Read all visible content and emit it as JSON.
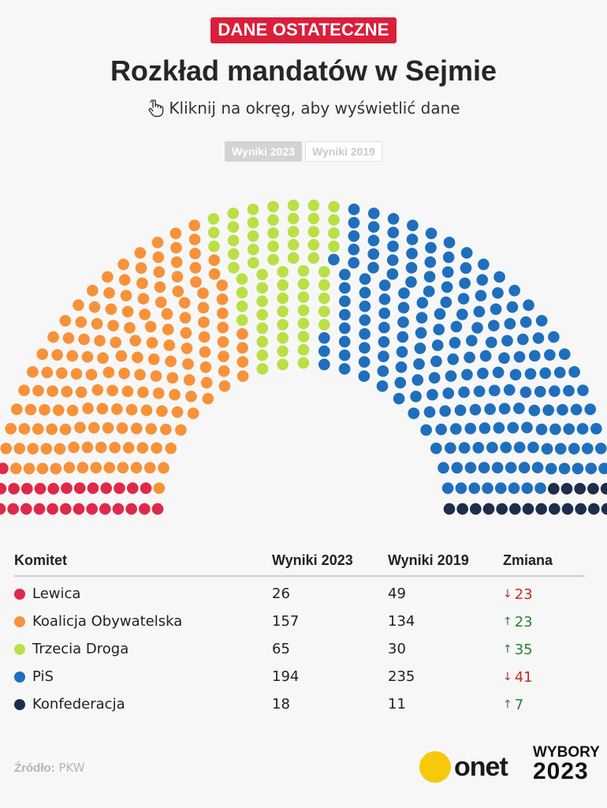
{
  "header": {
    "badge": "DANE OSTATECZNE",
    "title": "Rozkład mandatów w Sejmie",
    "subtitle": "Kliknij na okręg, aby wyświetlić dane"
  },
  "tabs": [
    {
      "label": "Wyniki 2023",
      "active": true
    },
    {
      "label": "Wyniki 2019",
      "active": false
    }
  ],
  "chart_data": {
    "type": "parliament",
    "total_seats": 460,
    "series": [
      {
        "name": "Lewica",
        "value": 26,
        "color": "#e0284a"
      },
      {
        "name": "Koalicja Obywatelska",
        "value": 157,
        "color": "#f7923a"
      },
      {
        "name": "Trzecia Droga",
        "value": 65,
        "color": "#b9e045"
      },
      {
        "name": "PiS",
        "value": 194,
        "color": "#1f6fbd"
      },
      {
        "name": "Konfederacja",
        "value": 18,
        "color": "#1e2d4a"
      }
    ]
  },
  "table": {
    "headers": [
      "Komitet",
      "Wyniki 2023",
      "Wyniki 2019",
      "Zmiana"
    ],
    "rows": [
      {
        "name": "Lewica",
        "color": "#e0284a",
        "y2023": "26",
        "y2019": "49",
        "change": "23",
        "dir": "down"
      },
      {
        "name": "Koalicja Obywatelska",
        "color": "#f7923a",
        "y2023": "157",
        "y2019": "134",
        "change": "23",
        "dir": "up"
      },
      {
        "name": "Trzecia Droga",
        "color": "#b9e045",
        "y2023": "65",
        "y2019": "30",
        "change": "35",
        "dir": "up"
      },
      {
        "name": "PiS",
        "color": "#1f6fbd",
        "y2023": "194",
        "y2019": "235",
        "change": "41",
        "dir": "down"
      },
      {
        "name": "Konfederacja",
        "color": "#1e2d4a",
        "y2023": "18",
        "y2019": "11",
        "change": "7",
        "dir": "up"
      }
    ]
  },
  "footer": {
    "source_label": "Źródło:",
    "source_value": "PKW",
    "logo_text": "onet",
    "brand_line1": "WYBORY",
    "brand_line2": "2023"
  }
}
